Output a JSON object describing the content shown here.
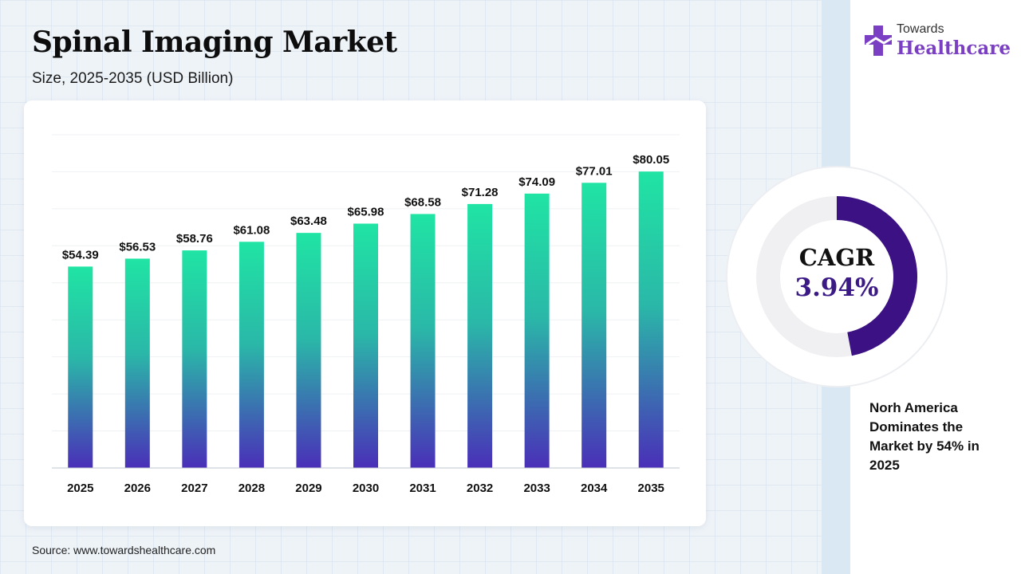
{
  "title": "Spinal Imaging Market",
  "subtitle": "Size, 2025-2035 (USD Billion)",
  "source": "Source: www.towardshealthcare.com",
  "logo": {
    "top": "Towards",
    "bottom": "Healthcare"
  },
  "cagr": {
    "label": "CAGR",
    "value": "3.94%",
    "fraction": 0.47
  },
  "note": "Norh America Dominates the Market by 54% in 2025",
  "colors": {
    "bar_top": "#20e4a4",
    "bar_bottom": "#4a2fb8",
    "cagr_arc": "#3b1183",
    "donut_track": "#f0f0f2",
    "logo_purple": "#7b3fc4"
  },
  "chart_data": {
    "type": "bar",
    "categories": [
      "2025",
      "2026",
      "2027",
      "2028",
      "2029",
      "2030",
      "2031",
      "2032",
      "2033",
      "2034",
      "2035"
    ],
    "values": [
      54.39,
      56.53,
      58.76,
      61.08,
      63.48,
      65.98,
      68.58,
      71.28,
      74.09,
      77.01,
      80.05
    ],
    "value_labels": [
      "$54.39",
      "$56.53",
      "$58.76",
      "$61.08",
      "$63.48",
      "$65.98",
      "$68.58",
      "$71.28",
      "$74.09",
      "$77.01",
      "$80.05"
    ],
    "ylim": [
      0,
      100
    ],
    "grid": true,
    "legend": "none"
  }
}
